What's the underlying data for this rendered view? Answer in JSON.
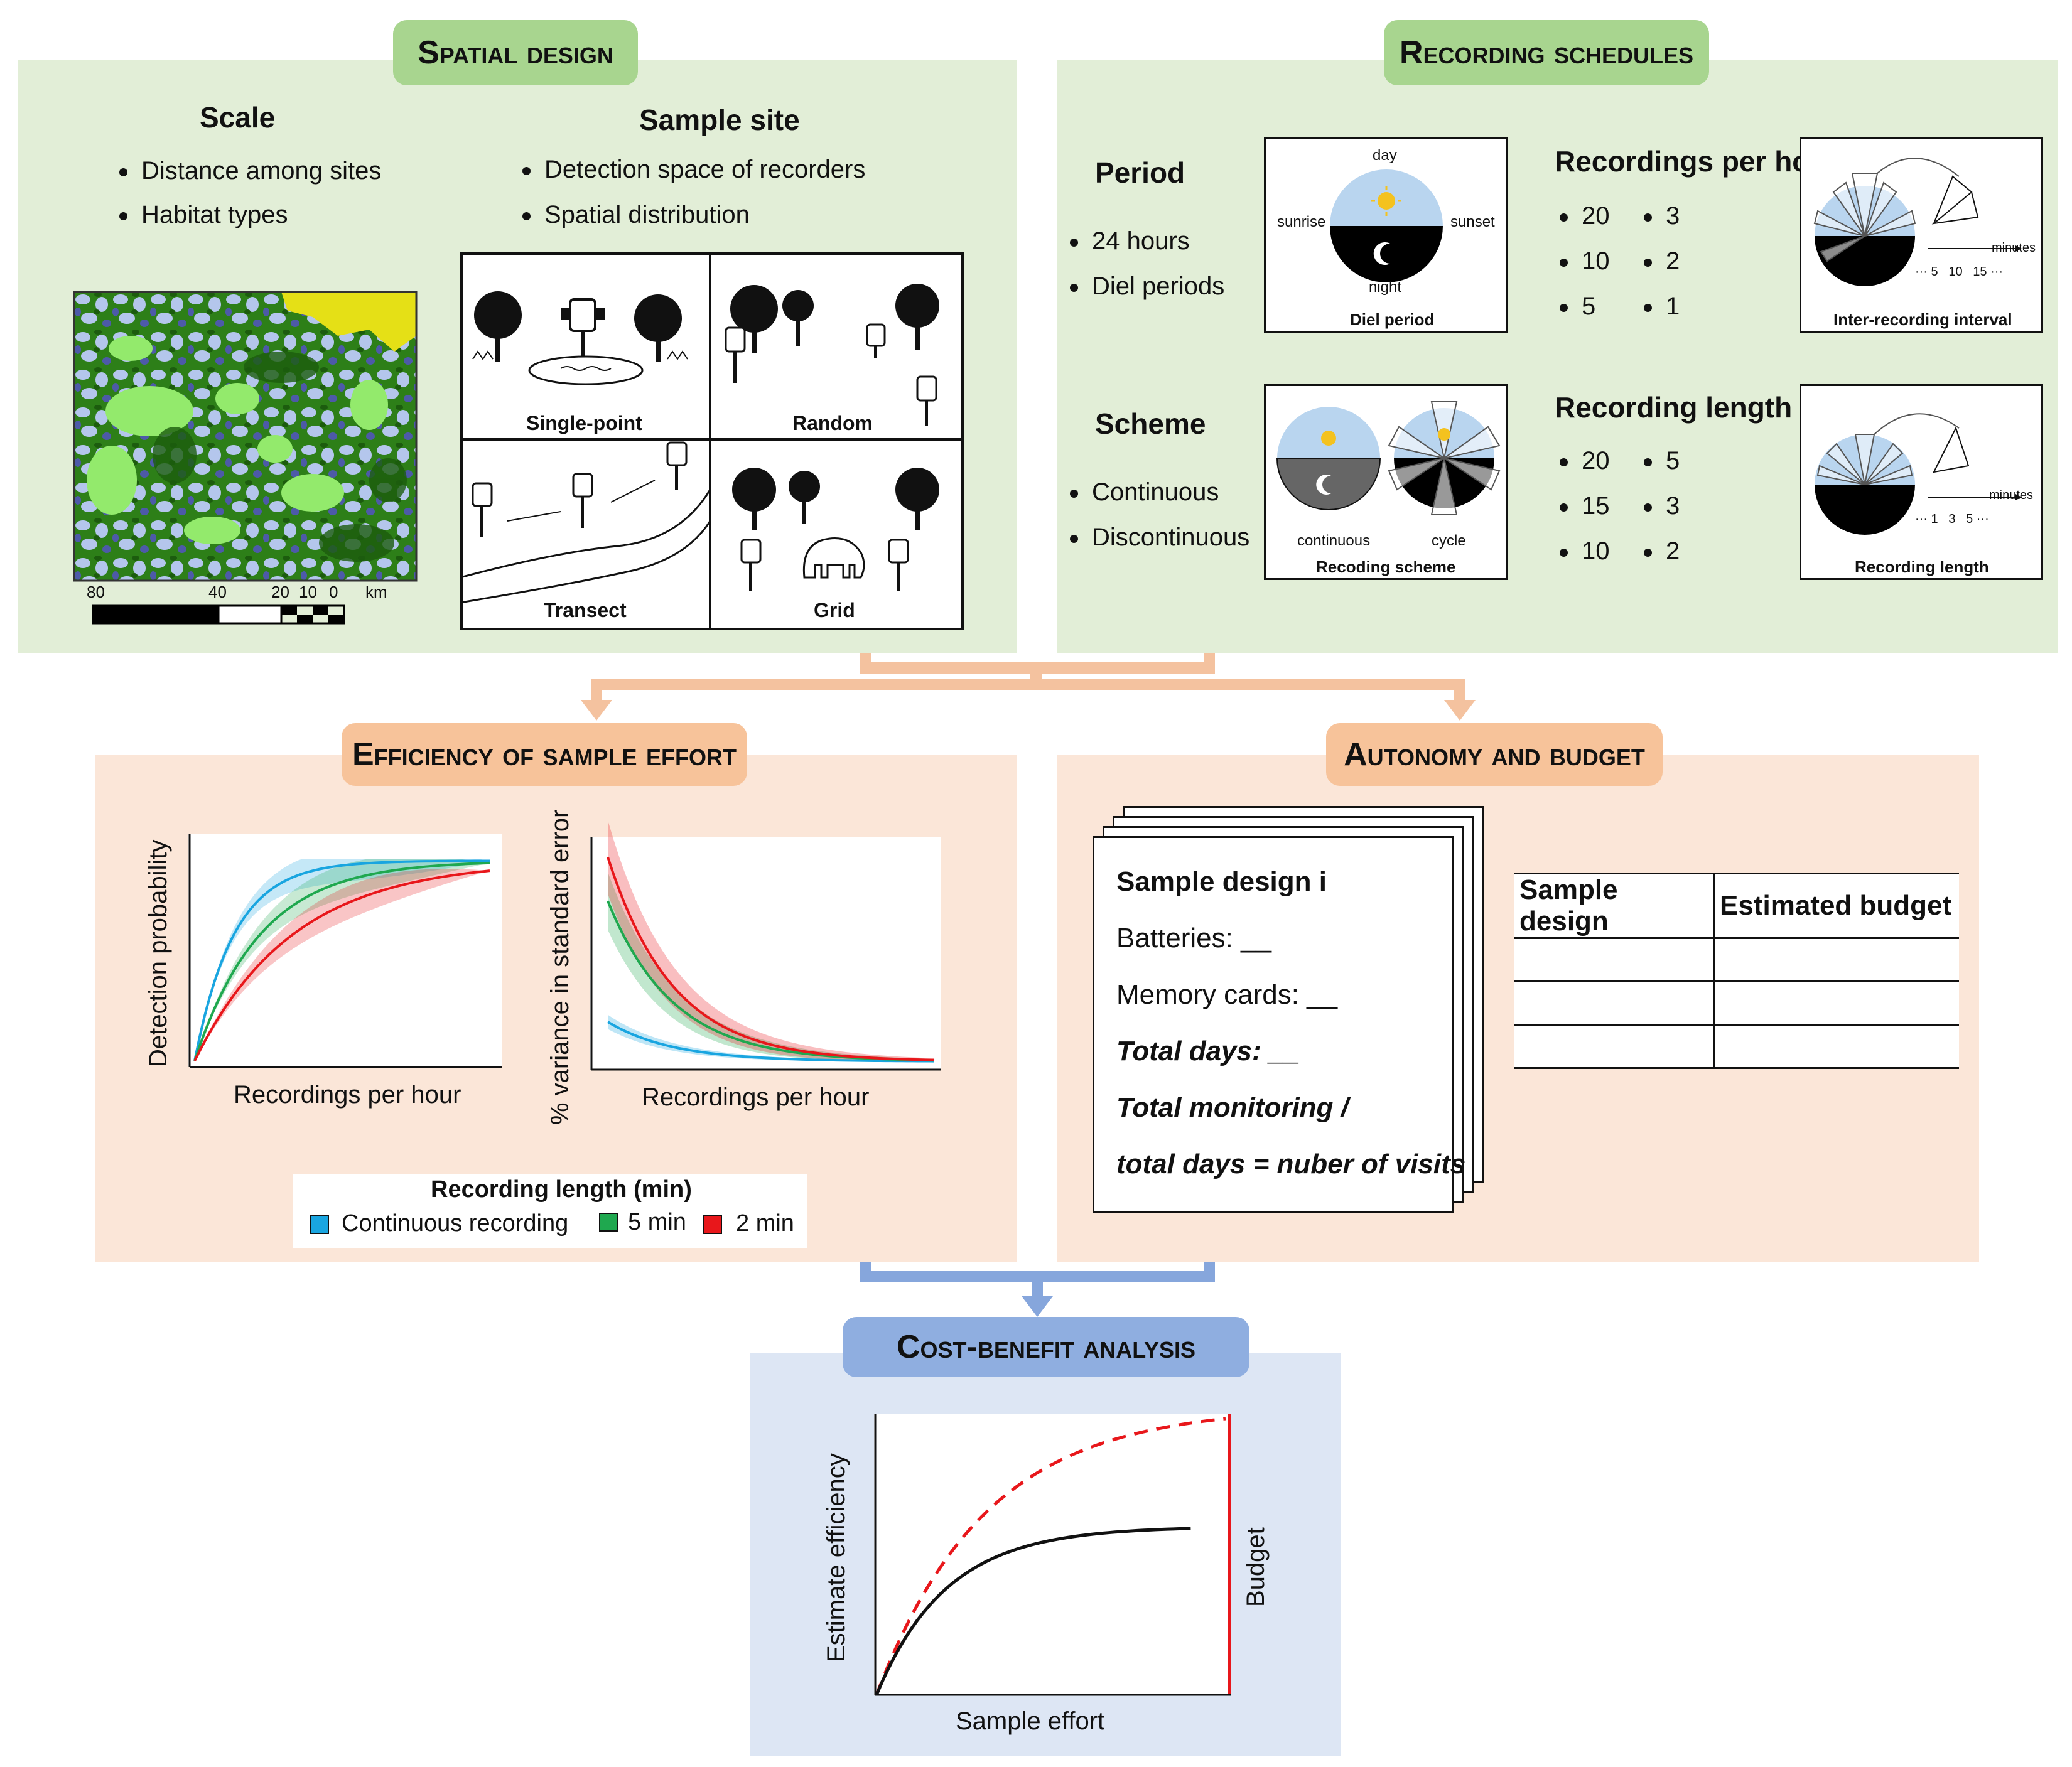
{
  "spatial": {
    "title": "Spatial design",
    "scale_heading": "Scale",
    "scale_items": [
      "Distance among sites",
      "Habitat types"
    ],
    "site_heading": "Sample site",
    "site_items": [
      "Detection space of recorders",
      "Spatial distribution"
    ],
    "map_scale": {
      "ticks": [
        "80",
        "40",
        "20",
        "10",
        "0"
      ],
      "unit": "km"
    },
    "designs": [
      "Single-point",
      "Random",
      "Transect",
      "Grid"
    ]
  },
  "recording": {
    "title": "Recording schedules",
    "period_heading": "Period",
    "period_items": [
      "24 hours",
      "Diel periods"
    ],
    "diel": {
      "day": "day",
      "sunrise": "sunrise",
      "sunset": "sunset",
      "night": "night",
      "caption": "Diel period"
    },
    "rph_heading": "Recordings per hour",
    "rph_values": [
      "20",
      "3",
      "10",
      "2",
      "5",
      "1"
    ],
    "interval": {
      "minutes": "minutes",
      "ticks": "··· 5   10   15 ···",
      "caption": "Inter-recording interval"
    },
    "scheme_heading": "Scheme",
    "scheme_items": [
      "Continuous",
      "Discontinuous"
    ],
    "scheme": {
      "continuous": "continuous",
      "cycle": "cycle",
      "caption": "Recoding scheme"
    },
    "length_heading": "Recording length",
    "length_values": [
      "20",
      "5",
      "15",
      "3",
      "10",
      "2"
    ],
    "length_box": {
      "minutes": "minutes",
      "ticks": "··· 1   3   5 ···",
      "caption": "Recording length"
    }
  },
  "efficiency": {
    "title": "Efficiency of sample effort",
    "chart1_ylabel": "Detection probability",
    "chart1_xlabel": "Recordings per hour",
    "chart2_ylabel": "% variance in standard error",
    "chart2_xlabel": "Recordings per hour",
    "legend_title": "Recording length (min)",
    "legend": [
      {
        "label": "Continuous recording",
        "color": "#19a5e0"
      },
      {
        "label": "5 min",
        "color": "#1fa84f"
      },
      {
        "label": "2 min",
        "color": "#e8171b"
      }
    ]
  },
  "autonomy": {
    "title": "Autonomy and budget",
    "card_title": "Sample design i",
    "card_lines": [
      "Batteries: __",
      "Memory cards: __",
      "Total days: __",
      "Total monitoring /",
      "total days = nuber of visits"
    ],
    "table_headers": [
      "Sample design",
      "Estimated budget"
    ]
  },
  "cost": {
    "title": "Cost-benefit analysis",
    "ylabel": "Estimate efficiency",
    "xlabel": "Sample effort",
    "budget_label": "Budget"
  },
  "colors": {
    "green_panel": "#e2eed7",
    "green_header": "#a8d58f",
    "peach_panel": "#fbe6d8",
    "peach_header": "#f7c39a",
    "blue_panel": "#dde6f4",
    "blue_header": "#8faee0",
    "arrow_orange": "#f4c29f",
    "arrow_blue": "#86a6dc"
  },
  "chart_data": [
    {
      "type": "line",
      "title": "",
      "xlabel": "Recordings per hour",
      "ylabel": "Detection probability",
      "series": [
        {
          "name": "Continuous recording",
          "rate": 7.5
        },
        {
          "name": "5 min",
          "rate": 4.5
        },
        {
          "name": "2 min",
          "rate": 3.0
        }
      ]
    },
    {
      "type": "line",
      "title": "",
      "xlabel": "Recordings per hour",
      "ylabel": "% variance in standard error",
      "series": [
        {
          "name": "Continuous recording",
          "start": 0.18
        },
        {
          "name": "5 min",
          "start": 0.73
        },
        {
          "name": "2 min",
          "start": 0.93
        }
      ]
    },
    {
      "type": "line",
      "title": "",
      "xlabel": "Sample effort",
      "ylabel": "Estimate efficiency",
      "series": [
        {
          "name": "",
          "style": "dashed-red"
        },
        {
          "name": "",
          "style": "solid-black"
        }
      ],
      "annotations": [
        "Budget"
      ]
    }
  ]
}
